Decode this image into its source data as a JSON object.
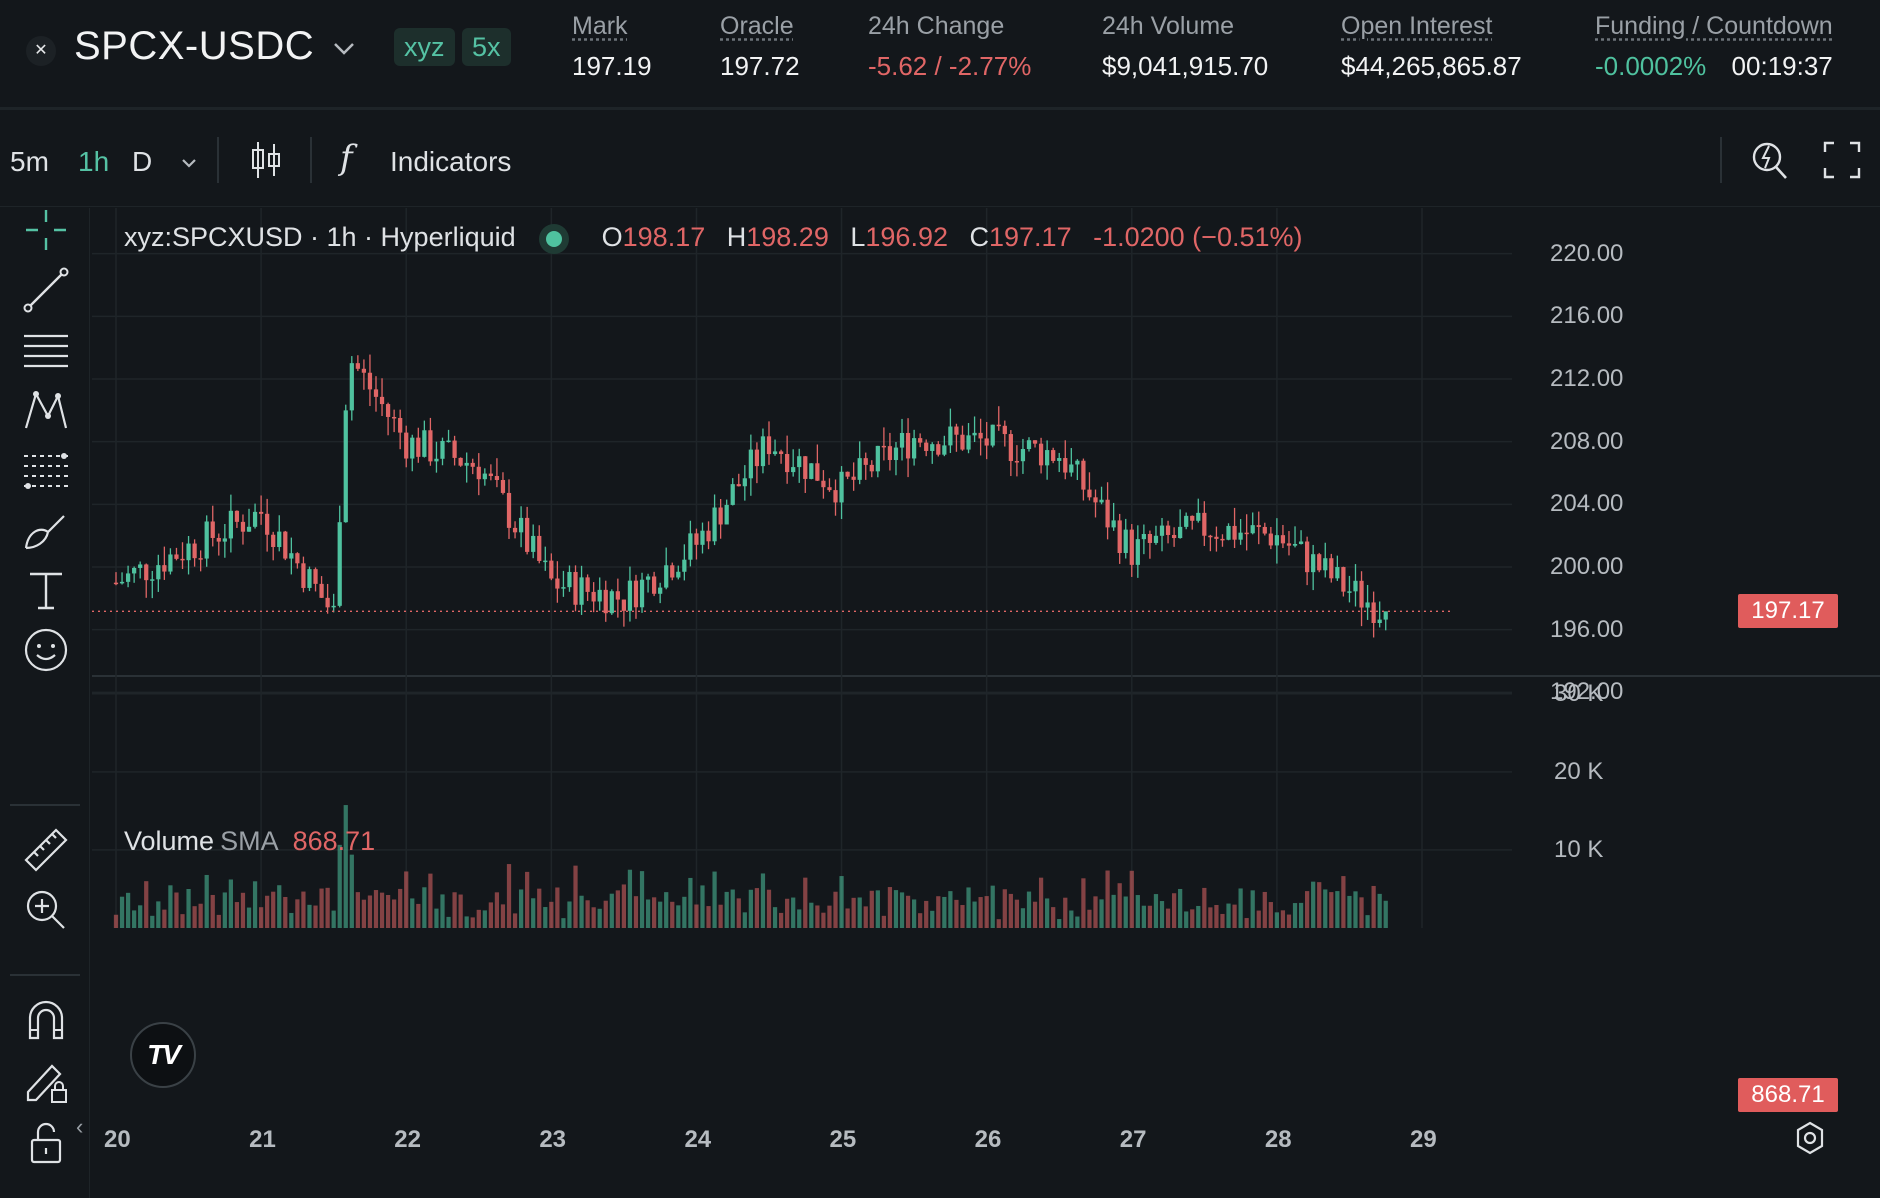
{
  "header": {
    "pair_logo_icon": "x-logo-icon",
    "pair_logo_glyph": "✕",
    "pair": "SPCX-USDC",
    "tag_dex": "xyz",
    "tag_leverage": "5x",
    "stats": {
      "mark_label": "Mark",
      "mark_value": "197.19",
      "oracle_label": "Oracle",
      "oracle_value": "197.72",
      "change_label": "24h Change",
      "change_value": "-5.62 / -2.77%",
      "volume_label": "24h Volume",
      "volume_value": "$9,041,915.70",
      "oi_label": "Open Interest",
      "oi_value": "$44,265,865.87",
      "funding_label": "Funding / Countdown",
      "funding_value": "-0.0002%",
      "countdown_value": "00:19:37"
    }
  },
  "toolbar": {
    "timeframes": [
      "5m",
      "1h",
      "D"
    ],
    "active_timeframe": "1h",
    "fx_glyph": "f",
    "indicators_label": "Indicators"
  },
  "chart": {
    "legend": {
      "symbol": "xyz:SPCXUSD · 1h · Hyperliquid",
      "o_key": "O",
      "o_val": "198.17",
      "h_key": "H",
      "h_val": "198.29",
      "l_key": "L",
      "l_val": "196.92",
      "c_key": "C",
      "c_val": "197.17",
      "change": "-1.0200 (−0.51%)"
    },
    "volume_legend": {
      "title": "Volume",
      "indicator": "SMA",
      "value": "868.71"
    },
    "last_price_tag": "197.17",
    "last_volume_tag": "868.71",
    "logo_text": "TV",
    "scroll_left_glyph": "‹",
    "colors": {
      "up": "#4fc29f",
      "down": "#e06666",
      "grid": "#1f2529",
      "background": "#13171b"
    }
  },
  "chart_data": {
    "type": "candlestick",
    "symbol": "xyz:SPCXUSD",
    "interval": "1h",
    "y_ticks": [
      "220.00",
      "216.00",
      "212.00",
      "208.00",
      "204.00",
      "200.00",
      "196.00",
      "192.00"
    ],
    "y_range": [
      191,
      221
    ],
    "volume_ticks": [
      "30 K",
      "20 K",
      "10 K"
    ],
    "volume_range": [
      0,
      31000
    ],
    "x_ticks": [
      "20",
      "21",
      "22",
      "23",
      "24",
      "25",
      "26",
      "27",
      "28",
      "29"
    ],
    "last_close": 197.17,
    "volume_sma": 868.71,
    "day_closes": [
      {
        "day": 20,
        "close": 199.0
      },
      {
        "day": 21,
        "close": 203.5
      },
      {
        "day": 21.5,
        "close": 197.0
      },
      {
        "day": 21.6,
        "close": 213.5
      },
      {
        "day": 22,
        "close": 208.0
      },
      {
        "day": 22.5,
        "close": 206.5
      },
      {
        "day": 23,
        "close": 199.0
      },
      {
        "day": 23.5,
        "close": 198.0
      },
      {
        "day": 24,
        "close": 201.5
      },
      {
        "day": 24.5,
        "close": 208.0
      },
      {
        "day": 25,
        "close": 205.0
      },
      {
        "day": 25.5,
        "close": 208.3
      },
      {
        "day": 26,
        "close": 208.0
      },
      {
        "day": 26.5,
        "close": 207.2
      },
      {
        "day": 27,
        "close": 201.0
      },
      {
        "day": 27.5,
        "close": 202.5
      },
      {
        "day": 28,
        "close": 202.0
      },
      {
        "day": 28.5,
        "close": 198.5
      },
      {
        "day": 28.75,
        "close": 197.17
      }
    ]
  }
}
